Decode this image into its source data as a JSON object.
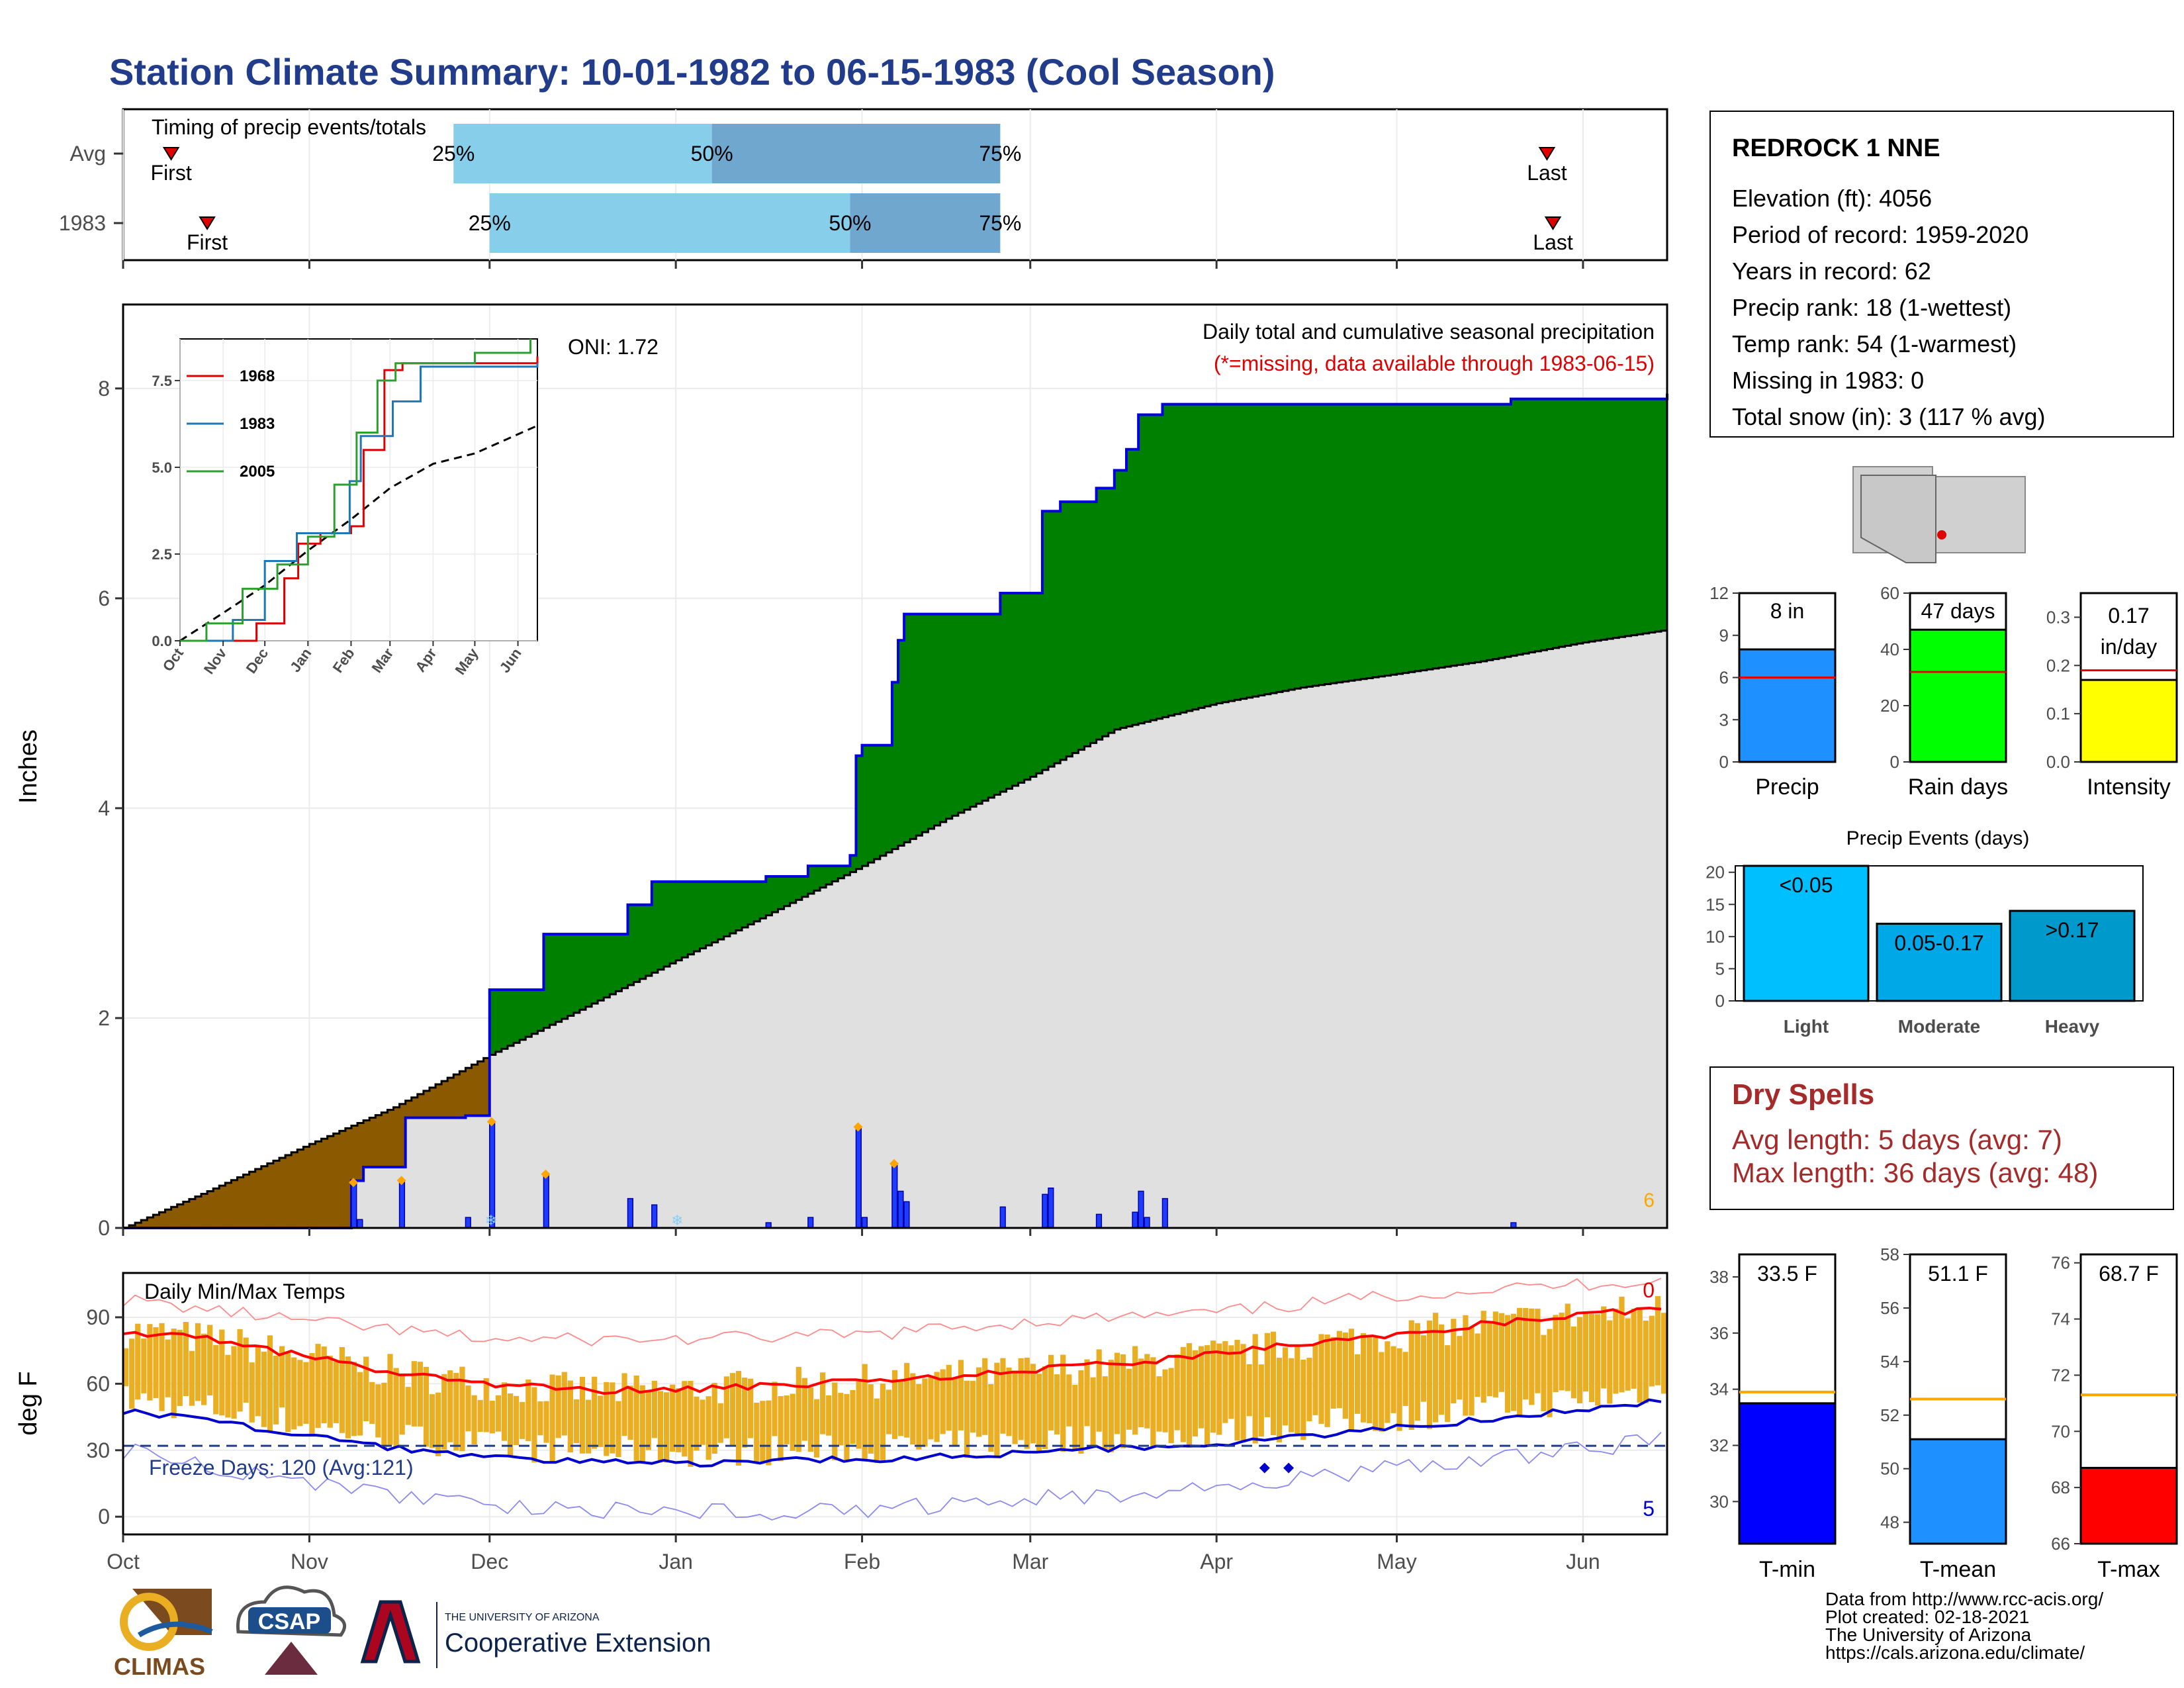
{
  "title": "Station Climate Summary: 10-01-1982 to 06-15-1983 (Cool Season)",
  "colors": {
    "title": "#223C8C",
    "pct_light": "#87CEEB",
    "pct_dark": "#6FA7CF",
    "marker": "#E00000",
    "precip_deficit": "#8B5A00",
    "precip_surplus": "#008000",
    "avg_fill": "#E0E0E0",
    "cum_line": "#0000E0",
    "temp_bar": "#E9AE22",
    "tmax_avg": "#FF0000",
    "tmin_avg": "#0000CC",
    "dry_spells": "#A52A2A"
  },
  "timing_panel": {
    "title": "Timing of precip events/totals",
    "rows": [
      {
        "label": "Avg",
        "first_date": "1982-10-09",
        "first_label": "First",
        "last_date": "1983-05-26",
        "last_label": "Last",
        "p25_date": "1982-11-25",
        "p25_label": "25%",
        "p50_date": "1983-01-07",
        "p50_label": "50%",
        "p75_date": "1983-02-24",
        "p75_label": "75%"
      },
      {
        "label": "1983",
        "first_date": "1982-10-15",
        "first_label": "First",
        "last_date": "1983-05-27",
        "last_label": "Last",
        "p25_date": "1982-12-01",
        "p25_label": "25%",
        "p50_date": "1983-01-30",
        "p50_label": "50%",
        "p75_date": "1983-02-24",
        "p75_label": "75%"
      }
    ]
  },
  "precip_panel": {
    "ylabel": "Inches",
    "label_main": "Daily total and cumulative seasonal precipitation",
    "label_missing": "(*=missing, data available through 1983-06-15)",
    "oni": "ONI: 1.72",
    "corner_count": "6"
  },
  "temp_panel": {
    "title": "Daily Min/Max Temps",
    "ylabel": "deg F",
    "freeze_label": "Freeze Days: 120 (Avg:121)",
    "freeze_line": 32,
    "count_top": "0",
    "count_bottom": "5"
  },
  "station_box": {
    "name": "REDROCK 1 NNE",
    "lines": [
      "Elevation (ft): 4056",
      "Period of record: 1959-2020",
      "Years in record: 62",
      "Precip rank: 18 (1-wettest)",
      "Temp rank: 54 (1-warmest)",
      "Missing in 1983: 0",
      "Total snow (in): 3 (117 % avg)"
    ]
  },
  "stat_bars": [
    {
      "name": "Precip",
      "value": 8,
      "avg": 6,
      "label": "8 in",
      "ymax": 12,
      "ticks": [
        "0",
        "3",
        "6",
        "9",
        "12"
      ],
      "color": "#1E90FF"
    },
    {
      "name": "Rain days",
      "value": 47,
      "avg": 32,
      "label": "47 days",
      "ymax": 60,
      "ticks": [
        "0",
        "20",
        "40",
        "60"
      ],
      "color": "#00FF00"
    },
    {
      "name": "Intensity",
      "value": 0.17,
      "avg": 0.19,
      "label": "0.17 in/day",
      "ymax": 0.35,
      "ticks": [
        "0.0",
        "0.1",
        "0.2",
        "0.3"
      ],
      "color": "#FFFF00"
    }
  ],
  "precip_events": {
    "title": "Precip Events (days)",
    "ymax": 21,
    "ticks": [
      "0",
      "5",
      "10",
      "15",
      "20"
    ],
    "categories": [
      "Light",
      "Moderate",
      "Heavy"
    ],
    "bar_labels": [
      "<0.05",
      "0.05-0.17",
      ">0.17"
    ],
    "values": [
      21,
      12,
      14
    ],
    "colors": [
      "#00BFFF",
      "#00A8E8",
      "#0099CC"
    ]
  },
  "dry_spells": {
    "title": "Dry Spells",
    "lines": [
      "Avg length: 5 days (avg: 7)",
      "Max length: 36 days (avg: 48)"
    ]
  },
  "temp_bars": [
    {
      "name": "T-min",
      "value": 33.5,
      "avg": 33.9,
      "label": "33.5 F",
      "ymin": 28.5,
      "ymax": 38.8,
      "ticks": [
        30,
        32,
        34,
        36,
        38
      ],
      "color": "#0000FF"
    },
    {
      "name": "T-mean",
      "value": 51.1,
      "avg": 52.6,
      "label": "51.1 F",
      "ymin": 47.2,
      "ymax": 58.0,
      "ticks": [
        48,
        50,
        52,
        54,
        56,
        58
      ],
      "color": "#1E90FF"
    },
    {
      "name": "T-max",
      "value": 68.7,
      "avg": 71.3,
      "label": "68.7 F",
      "ymin": 66.0,
      "ymax": 76.3,
      "ticks": [
        66,
        68,
        70,
        72,
        74,
        76
      ],
      "color": "#FF0000"
    }
  ],
  "credits": [
    "Data from http://www.rcc-acis.org/",
    "Plot created: 02-18-2021",
    "The University of Arizona",
    "https://cals.arizona.edu/climate/"
  ],
  "logos": {
    "climas": "CLIMAS",
    "csap": "CSAP",
    "ua_small": "THE UNIVERSITY OF ARIZONA",
    "ua_big": "Cooperative Extension"
  },
  "chart_data": [
    {
      "type": "area",
      "name": "cumulative_precip",
      "x_start": "1982-10-01",
      "x_end": "1983-06-15",
      "x_ticks": [
        "Oct",
        "Nov",
        "Dec",
        "Jan",
        "Feb",
        "Mar",
        "Apr",
        "May",
        "Jun"
      ],
      "x_tick_dates": [
        "1982-10-01",
        "1982-11-01",
        "1982-12-01",
        "1983-01-01",
        "1983-02-01",
        "1983-03-01",
        "1983-04-01",
        "1983-05-01",
        "1983-06-01"
      ],
      "ylim": [
        0,
        8.8
      ],
      "y_ticks": [
        0,
        2,
        4,
        6,
        8
      ],
      "cumulative_observed_steps": [
        [
          "1982-10-01",
          0
        ],
        [
          "1982-11-08",
          0.45
        ],
        [
          "1982-11-10",
          0.58
        ],
        [
          "1982-11-16",
          0.58
        ],
        [
          "1982-11-17",
          1.05
        ],
        [
          "1982-11-26",
          1.05
        ],
        [
          "1982-11-27",
          1.07
        ],
        [
          "1982-12-01",
          2.27
        ],
        [
          "1982-12-10",
          2.27
        ],
        [
          "1982-12-10",
          2.8
        ],
        [
          "1982-12-24",
          2.8
        ],
        [
          "1982-12-24",
          3.08
        ],
        [
          "1982-12-28",
          3.3
        ],
        [
          "1983-01-14",
          3.3
        ],
        [
          "1983-01-16",
          3.35
        ],
        [
          "1983-01-23",
          3.45
        ],
        [
          "1983-01-30",
          3.55
        ],
        [
          "1983-01-31",
          4.5
        ],
        [
          "1983-02-01",
          4.6
        ],
        [
          "1983-02-05",
          4.6
        ],
        [
          "1983-02-06",
          5.2
        ],
        [
          "1983-02-07",
          5.6
        ],
        [
          "1983-02-08",
          5.85
        ],
        [
          "1983-02-24",
          6.05
        ],
        [
          "1983-03-03",
          6.83
        ],
        [
          "1983-03-06",
          6.92
        ],
        [
          "1983-03-12",
          7.05
        ],
        [
          "1983-03-15",
          7.22
        ],
        [
          "1983-03-17",
          7.42
        ],
        [
          "1983-03-19",
          7.75
        ],
        [
          "1983-03-23",
          7.85
        ],
        [
          "1983-05-20",
          7.9
        ],
        [
          "1983-06-15",
          7.95
        ]
      ],
      "cumulative_average": [
        [
          "1982-10-01",
          0
        ],
        [
          "1982-10-15",
          0.35
        ],
        [
          "1982-11-01",
          0.8
        ],
        [
          "1982-11-15",
          1.15
        ],
        [
          "1982-12-01",
          1.65
        ],
        [
          "1982-12-15",
          2.05
        ],
        [
          "1983-01-01",
          2.55
        ],
        [
          "1983-01-15",
          2.95
        ],
        [
          "1983-02-01",
          3.45
        ],
        [
          "1983-02-15",
          3.9
        ],
        [
          "1983-03-01",
          4.3
        ],
        [
          "1983-03-15",
          4.75
        ],
        [
          "1983-04-01",
          5.0
        ],
        [
          "1983-04-15",
          5.15
        ],
        [
          "1983-05-01",
          5.28
        ],
        [
          "1983-05-15",
          5.4
        ],
        [
          "1983-06-01",
          5.58
        ],
        [
          "1983-06-15",
          5.7
        ]
      ],
      "daily_precip": [
        [
          "1982-11-08",
          0.42
        ],
        [
          "1982-11-09",
          0.08
        ],
        [
          "1982-11-16",
          0.44
        ],
        [
          "1982-11-27",
          0.1
        ],
        [
          "1982-12-01",
          1.0
        ],
        [
          "1982-12-10",
          0.5
        ],
        [
          "1982-12-24",
          0.28
        ],
        [
          "1982-12-28",
          0.22
        ],
        [
          "1983-01-16",
          0.05
        ],
        [
          "1983-01-23",
          0.1
        ],
        [
          "1983-01-31",
          0.95
        ],
        [
          "1983-02-01",
          0.1
        ],
        [
          "1983-02-06",
          0.6
        ],
        [
          "1983-02-07",
          0.35
        ],
        [
          "1983-02-08",
          0.25
        ],
        [
          "1983-02-24",
          0.2
        ],
        [
          "1983-03-03",
          0.32
        ],
        [
          "1983-03-04",
          0.38
        ],
        [
          "1983-03-12",
          0.13
        ],
        [
          "1983-03-18",
          0.15
        ],
        [
          "1983-03-19",
          0.35
        ],
        [
          "1983-03-20",
          0.1
        ],
        [
          "1983-03-23",
          0.28
        ],
        [
          "1983-05-20",
          0.05
        ]
      ],
      "snow_markers": [
        "1982-12-01",
        "1983-01-01"
      ],
      "series": [
        {
          "name": "1968",
          "color": "#E00000",
          "steps": [
            [
              "1982-10-01",
              0
            ],
            [
              "1982-11-15",
              0
            ],
            [
              "1982-11-25",
              0.5
            ],
            [
              "1982-12-15",
              1.8
            ],
            [
              "1982-12-25",
              2.8
            ],
            [
              "1983-01-10",
              3.1
            ],
            [
              "1983-02-01",
              3.3
            ],
            [
              "1983-02-10",
              5.5
            ],
            [
              "1983-02-25",
              7.8
            ],
            [
              "1983-03-10",
              8.0
            ],
            [
              "1983-06-15",
              8.2
            ]
          ]
        },
        {
          "name": "1983",
          "color": "#1F77B4",
          "steps": [
            [
              "1982-10-01",
              0
            ],
            [
              "1982-11-08",
              0.6
            ],
            [
              "1982-12-01",
              2.3
            ],
            [
              "1982-12-24",
              3.1
            ],
            [
              "1983-01-31",
              4.6
            ],
            [
              "1983-02-08",
              5.9
            ],
            [
              "1983-03-03",
              6.9
            ],
            [
              "1983-03-23",
              7.9
            ],
            [
              "1983-06-15",
              8.0
            ]
          ]
        },
        {
          "name": "2005",
          "color": "#2CA02C",
          "steps": [
            [
              "1982-10-01",
              0
            ],
            [
              "1982-10-20",
              0.5
            ],
            [
              "1982-11-15",
              1.5
            ],
            [
              "1982-12-10",
              2.2
            ],
            [
              "1983-01-01",
              3.0
            ],
            [
              "1983-01-20",
              4.5
            ],
            [
              "1983-02-05",
              6.0
            ],
            [
              "1983-02-20",
              7.5
            ],
            [
              "1983-03-05",
              8.0
            ],
            [
              "1983-05-01",
              8.3
            ],
            [
              "1983-06-10",
              8.7
            ]
          ]
        }
      ],
      "inset_average_steps": [
        [
          "1982-10-01",
          0
        ],
        [
          "1982-11-01",
          0.8
        ],
        [
          "1982-12-01",
          1.6
        ],
        [
          "1983-01-01",
          2.6
        ],
        [
          "1983-02-01",
          3.5
        ],
        [
          "1983-03-01",
          4.4
        ],
        [
          "1983-04-01",
          5.1
        ],
        [
          "1983-05-01",
          5.4
        ],
        [
          "1983-06-15",
          6.2
        ]
      ],
      "inset_ylim": [
        0,
        8.7
      ],
      "inset_y_ticks": [
        "0.0",
        "2.5",
        "5.0",
        "7.5"
      ],
      "inset_x_ticks": [
        "Oct",
        "Nov",
        "Dec",
        "Jan",
        "Feb",
        "Mar",
        "Apr",
        "May",
        "Jun"
      ]
    },
    {
      "type": "bar",
      "name": "daily_temps",
      "ylim": [
        -8,
        110
      ],
      "y_ticks": [
        0,
        30,
        60,
        90
      ],
      "tmax_avg": [
        [
          "1982-10-01",
          84
        ],
        [
          "1982-10-15",
          80
        ],
        [
          "1982-11-01",
          72
        ],
        [
          "1982-11-15",
          65
        ],
        [
          "1982-12-01",
          60
        ],
        [
          "1982-12-15",
          57
        ],
        [
          "1983-01-01",
          57
        ],
        [
          "1983-01-15",
          59
        ],
        [
          "1983-02-01",
          61
        ],
        [
          "1983-02-15",
          63
        ],
        [
          "1983-03-01",
          66
        ],
        [
          "1983-03-15",
          69
        ],
        [
          "1983-04-01",
          73
        ],
        [
          "1983-04-15",
          78
        ],
        [
          "1983-05-01",
          82
        ],
        [
          "1983-05-15",
          87
        ],
        [
          "1983-06-01",
          91
        ],
        [
          "1983-06-15",
          94
        ]
      ],
      "tmin_avg": [
        [
          "1982-10-01",
          48
        ],
        [
          "1982-10-15",
          44
        ],
        [
          "1982-11-01",
          36
        ],
        [
          "1982-11-15",
          31
        ],
        [
          "1982-12-01",
          27
        ],
        [
          "1982-12-15",
          25
        ],
        [
          "1983-01-01",
          24
        ],
        [
          "1983-01-15",
          25
        ],
        [
          "1983-02-01",
          26
        ],
        [
          "1983-02-15",
          27
        ],
        [
          "1983-03-01",
          29
        ],
        [
          "1983-03-15",
          31
        ],
        [
          "1983-04-01",
          33
        ],
        [
          "1983-04-15",
          36
        ],
        [
          "1983-05-01",
          40
        ],
        [
          "1983-05-15",
          44
        ],
        [
          "1983-06-01",
          48
        ],
        [
          "1983-06-15",
          53
        ]
      ],
      "tmax_record": [
        [
          "1982-10-01",
          98
        ],
        [
          "1982-11-01",
          88
        ],
        [
          "1982-12-01",
          80
        ],
        [
          "1983-01-01",
          80
        ],
        [
          "1983-02-01",
          82
        ],
        [
          "1983-03-01",
          88
        ],
        [
          "1983-04-01",
          92
        ],
        [
          "1983-05-01",
          100
        ],
        [
          "1983-06-01",
          105
        ],
        [
          "1983-06-15",
          107
        ]
      ],
      "tmin_record": [
        [
          "1982-10-01",
          30
        ],
        [
          "1982-11-01",
          15
        ],
        [
          "1982-12-01",
          5
        ],
        [
          "1983-01-01",
          2
        ],
        [
          "1983-02-01",
          3
        ],
        [
          "1983-03-01",
          8
        ],
        [
          "1983-04-01",
          13
        ],
        [
          "1983-05-01",
          22
        ],
        [
          "1983-06-01",
          30
        ],
        [
          "1983-06-15",
          35
        ]
      ],
      "tmin_markers": [
        "1983-04-09",
        "1983-04-13"
      ]
    }
  ]
}
